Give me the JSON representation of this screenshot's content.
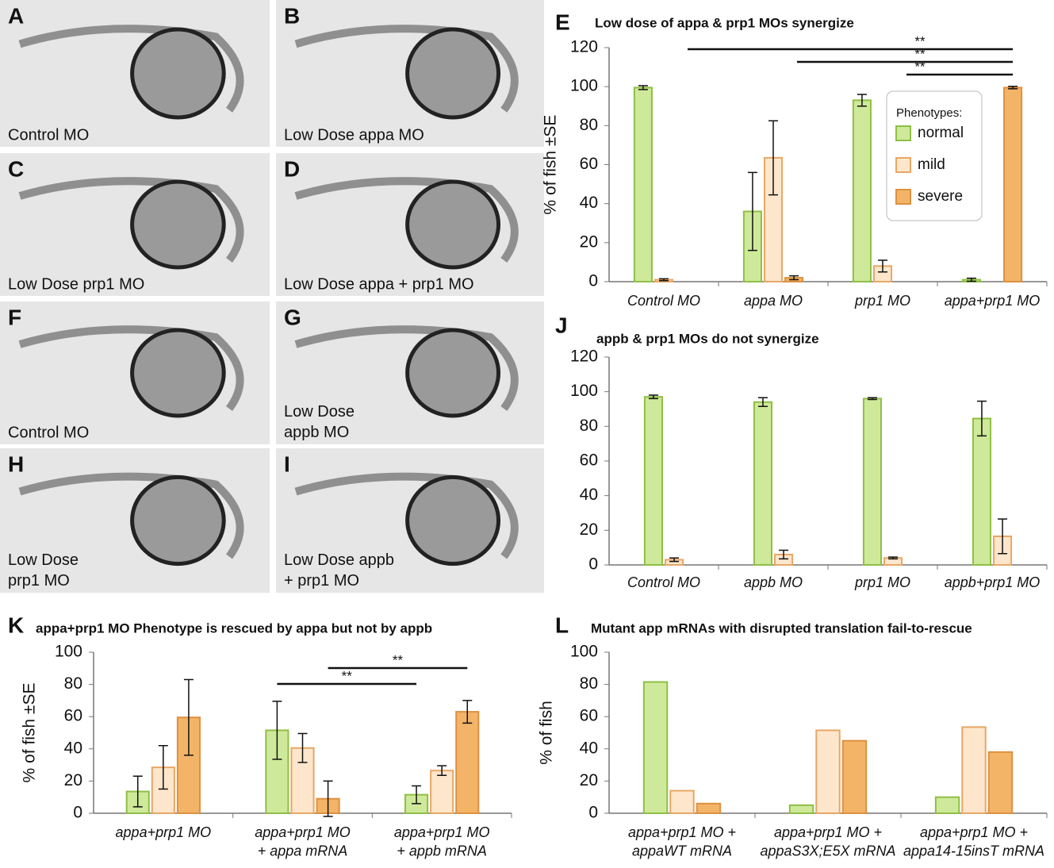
{
  "panels": [
    {
      "letter": "A",
      "label": "Control MO"
    },
    {
      "letter": "B",
      "label": "Low Dose appa MO"
    },
    {
      "letter": "C",
      "label": "Low Dose prp1 MO"
    },
    {
      "letter": "D",
      "label": "Low Dose appa + prp1 MO"
    },
    {
      "letter": "F",
      "label": "Control MO"
    },
    {
      "letter": "G",
      "label": "Low Dose\nappb MO"
    },
    {
      "letter": "H",
      "label": "Low Dose\nprp1 MO"
    },
    {
      "letter": "I",
      "label": "Low Dose appb\n+ prp1 MO"
    }
  ],
  "chart_data": [
    {
      "type": "bar",
      "panel": "E",
      "title": "Low dose of appa & prp1 MOs synergize",
      "y_label": "% of fish ±SE",
      "categories": [
        "Control MO",
        "appa MO",
        "prp1 MO",
        "appa+prp1 MO"
      ],
      "series": [
        {
          "name": "normal",
          "color": "#cfe99a",
          "values": [
            99.5,
            36,
            93,
            1
          ],
          "errors": [
            1,
            20,
            3,
            0.8
          ]
        },
        {
          "name": "mild",
          "color": "#fde6cc",
          "values": [
            1,
            63.5,
            8,
            0
          ],
          "errors": [
            0.5,
            19,
            3,
            0
          ]
        },
        {
          "name": "severe",
          "color": "#f4b468",
          "values": [
            0,
            2,
            0,
            99.5
          ],
          "errors": [
            0,
            1,
            0,
            0.6
          ]
        }
      ],
      "legend_title": "Phenotypes:",
      "ylim": [
        0,
        120
      ],
      "yticks": [
        0,
        20,
        40,
        60,
        80,
        100,
        120
      ],
      "significance": [
        {
          "label": "**",
          "between": [
            0,
            3
          ]
        },
        {
          "label": "**",
          "between": [
            1,
            3
          ]
        },
        {
          "label": "**",
          "between": [
            2,
            3
          ]
        }
      ]
    },
    {
      "type": "bar",
      "panel": "J",
      "title": "appb & prp1 MOs do not synergize",
      "categories": [
        "Control MO",
        "appb MO",
        "prp1 MO",
        "appb+prp1 MO"
      ],
      "series": [
        {
          "name": "normal",
          "color": "#cfe99a",
          "values": [
            97,
            94,
            96,
            84.5
          ],
          "errors": [
            1,
            2.5,
            0.5,
            10
          ]
        },
        {
          "name": "mild",
          "color": "#fde6cc",
          "values": [
            3,
            6,
            4,
            16.5
          ],
          "errors": [
            1,
            2.5,
            0.5,
            10
          ]
        }
      ],
      "ylim": [
        0,
        120
      ],
      "yticks": [
        0,
        20,
        40,
        60,
        80,
        100,
        120
      ]
    },
    {
      "type": "bar",
      "panel": "K",
      "title": "appa+prp1 MO Phenotype is rescued by appa but not by appb",
      "y_label": "% of fish ±SE",
      "categories": [
        "appa+prp1 MO",
        "appa+prp1 MO\n+ appa mRNA",
        "appa+prp1 MO\n+ appb mRNA"
      ],
      "series": [
        {
          "name": "normal",
          "color": "#cfe99a",
          "values": [
            13.5,
            51.5,
            11.5
          ],
          "errors": [
            9.5,
            18,
            5.5
          ]
        },
        {
          "name": "mild",
          "color": "#fde6cc",
          "values": [
            28.5,
            40.5,
            26.5
          ],
          "errors": [
            13.5,
            9,
            3
          ]
        },
        {
          "name": "severe",
          "color": "#f4b468",
          "values": [
            59.5,
            9,
            63
          ],
          "errors": [
            23.5,
            11,
            7
          ]
        }
      ],
      "ylim": [
        0,
        100
      ],
      "yticks": [
        0,
        20,
        40,
        60,
        80,
        100
      ],
      "significance": [
        {
          "label": "**",
          "between": [
            1,
            2
          ]
        },
        {
          "label": "**",
          "between": [
            1,
            2
          ]
        }
      ]
    },
    {
      "type": "bar",
      "panel": "L",
      "title": "Mutant app mRNAs with disrupted translation fail-to-rescue",
      "y_label": "% of fish",
      "categories": [
        "appa+prp1 MO +\nappaWT mRNA",
        "appa+prp1 MO +\nappaS3X;E5X mRNA",
        "appa+prp1 MO +\nappa14-15insT mRNA"
      ],
      "series": [
        {
          "name": "normal",
          "color": "#cfe99a",
          "values": [
            81.5,
            5,
            10
          ]
        },
        {
          "name": "mild",
          "color": "#fde6cc",
          "values": [
            14,
            51.5,
            53.5
          ]
        },
        {
          "name": "severe",
          "color": "#f4b468",
          "values": [
            6,
            45,
            38
          ]
        }
      ],
      "ylim": [
        0,
        100
      ],
      "yticks": [
        0,
        20,
        40,
        60,
        80,
        100
      ]
    }
  ]
}
